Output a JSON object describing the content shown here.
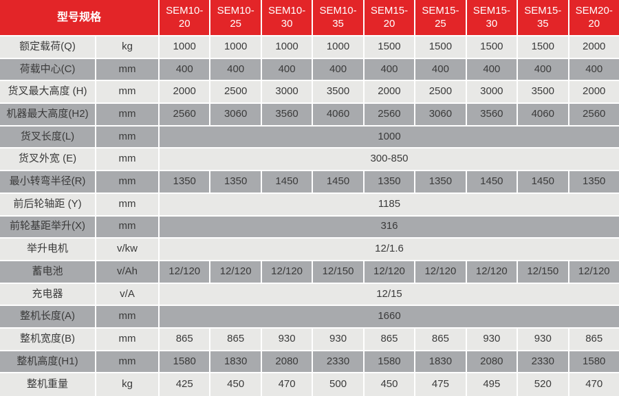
{
  "table": {
    "header": {
      "spec_label": "型号规格",
      "models": [
        "SEM10-20",
        "SEM10-25",
        "SEM10-30",
        "SEM10-35",
        "SEM15-20",
        "SEM15-25",
        "SEM15-30",
        "SEM15-35",
        "SEM20-20"
      ]
    },
    "rows": [
      {
        "label": "额定载荷(Q)",
        "unit": "kg",
        "shade": "light",
        "values": [
          "1000",
          "1000",
          "1000",
          "1000",
          "1500",
          "1500",
          "1500",
          "1500",
          "2000"
        ]
      },
      {
        "label": "荷载中心(C)",
        "unit": "mm",
        "shade": "dark",
        "values": [
          "400",
          "400",
          "400",
          "400",
          "400",
          "400",
          "400",
          "400",
          "400"
        ]
      },
      {
        "label": "货叉最大高度 (H)",
        "unit": "mm",
        "shade": "light",
        "values": [
          "2000",
          "2500",
          "3000",
          "3500",
          "2000",
          "2500",
          "3000",
          "3500",
          "2000"
        ]
      },
      {
        "label": "机器最大高度(H2)",
        "unit": "mm",
        "shade": "dark",
        "values": [
          "2560",
          "3060",
          "3560",
          "4060",
          "2560",
          "3060",
          "3560",
          "4060",
          "2560"
        ]
      },
      {
        "label": "货叉长度(L)",
        "unit": "mm",
        "shade": "dark",
        "merged": "1000"
      },
      {
        "label": "货叉外宽 (E)",
        "unit": "mm",
        "shade": "light",
        "merged": "300-850"
      },
      {
        "label": "最小转弯半径(R)",
        "unit": "mm",
        "shade": "dark",
        "values": [
          "1350",
          "1350",
          "1450",
          "1450",
          "1350",
          "1350",
          "1450",
          "1450",
          "1350"
        ]
      },
      {
        "label": "前后轮轴距 (Y)",
        "unit": "mm",
        "shade": "light",
        "merged": "1185"
      },
      {
        "label": "前轮基距举升(X)",
        "unit": "mm",
        "shade": "dark",
        "merged": "316"
      },
      {
        "label": "举升电机",
        "unit": "v/kw",
        "shade": "light",
        "merged": "12/1.6"
      },
      {
        "label": "蓄电池",
        "unit": "v/Ah",
        "shade": "dark",
        "values": [
          "12/120",
          "12/120",
          "12/120",
          "12/150",
          "12/120",
          "12/120",
          "12/120",
          "12/150",
          "12/120"
        ]
      },
      {
        "label": "充电器",
        "unit": "v/A",
        "shade": "light",
        "merged": "12/15"
      },
      {
        "label": "整机长度(A)",
        "unit": "mm",
        "shade": "dark",
        "merged": "1660"
      },
      {
        "label": "整机宽度(B)",
        "unit": "mm",
        "shade": "light",
        "values": [
          "865",
          "865",
          "930",
          "930",
          "865",
          "865",
          "930",
          "930",
          "865"
        ]
      },
      {
        "label": "整机高度(H1)",
        "unit": "mm",
        "shade": "dark",
        "values": [
          "1580",
          "1830",
          "2080",
          "2330",
          "1580",
          "1830",
          "2080",
          "2330",
          "1580"
        ]
      },
      {
        "label": "整机重量",
        "unit": "kg",
        "shade": "light",
        "values": [
          "425",
          "450",
          "470",
          "500",
          "450",
          "475",
          "495",
          "520",
          "470"
        ]
      }
    ],
    "colors": {
      "header_bg": "#e32528",
      "header_text": "#ffffff",
      "row_light": "#e8e8e6",
      "row_dark": "#a8aaad",
      "divider": "#ffffff",
      "cell_text": "#3a3a3a"
    }
  }
}
